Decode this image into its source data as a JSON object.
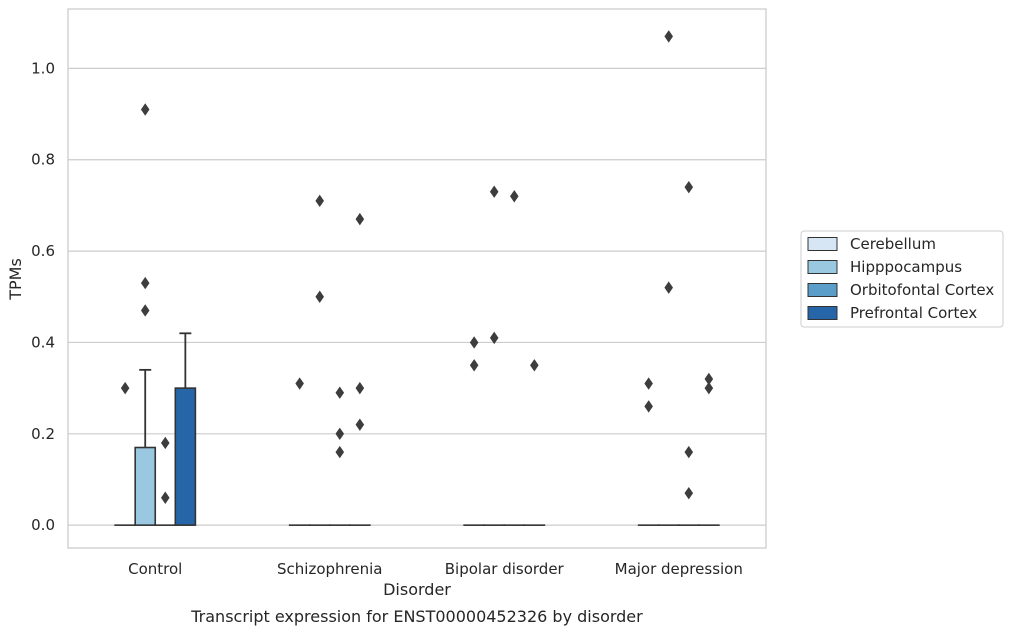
{
  "chart_data": {
    "type": "bar",
    "caption": "Transcript expression for ENST00000452326 by disorder",
    "xlabel": "Disorder",
    "ylabel": "TPMs",
    "ylim": [
      -0.05,
      1.13
    ],
    "yticks": [
      0.0,
      0.2,
      0.4,
      0.6,
      0.8,
      1.0
    ],
    "ytick_labels": [
      "0.0",
      "0.2",
      "0.4",
      "0.6",
      "0.8",
      "1.0"
    ],
    "grid": "horizontal",
    "legend_position": "right",
    "categories": [
      "Control",
      "Schizophrenia",
      "Bipolar disorder",
      "Major depression"
    ],
    "series": [
      {
        "name": "Cerebellum",
        "color": "#d6e6f4",
        "values": [
          0.0,
          0.0,
          0.0,
          0.0
        ],
        "error_upper": [
          null,
          null,
          null,
          null
        ],
        "outliers": [
          [
            0.3
          ],
          [
            0.31
          ],
          [
            0.35,
            0.4
          ],
          [
            0.26,
            0.31
          ]
        ]
      },
      {
        "name": "Hipppocampus",
        "color": "#9ac8e0",
        "values": [
          0.17,
          0.0,
          0.0,
          0.0
        ],
        "error_upper": [
          0.34,
          null,
          null,
          null
        ],
        "outliers": [
          [
            0.47,
            0.53,
            0.91
          ],
          [
            0.5,
            0.71
          ],
          [
            0.41,
            0.73
          ],
          [
            0.52,
            1.07
          ]
        ]
      },
      {
        "name": "Orbitofontal Cortex",
        "color": "#5a9ec9",
        "values": [
          0.0,
          0.0,
          0.0,
          0.0
        ],
        "error_upper": [
          null,
          null,
          null,
          null
        ],
        "outliers": [
          [
            0.06,
            0.18
          ],
          [
            0.16,
            0.2,
            0.29
          ],
          [
            0.72
          ],
          [
            0.07,
            0.16,
            0.74
          ]
        ]
      },
      {
        "name": "Prefrontal Cortex",
        "color": "#2666a8",
        "values": [
          0.3,
          0.0,
          0.0,
          0.0
        ],
        "error_upper": [
          0.42,
          null,
          null,
          null
        ],
        "outliers": [
          [],
          [
            0.22,
            0.3,
            0.67
          ],
          [
            0.35
          ],
          [
            0.3,
            0.32
          ]
        ]
      }
    ]
  }
}
